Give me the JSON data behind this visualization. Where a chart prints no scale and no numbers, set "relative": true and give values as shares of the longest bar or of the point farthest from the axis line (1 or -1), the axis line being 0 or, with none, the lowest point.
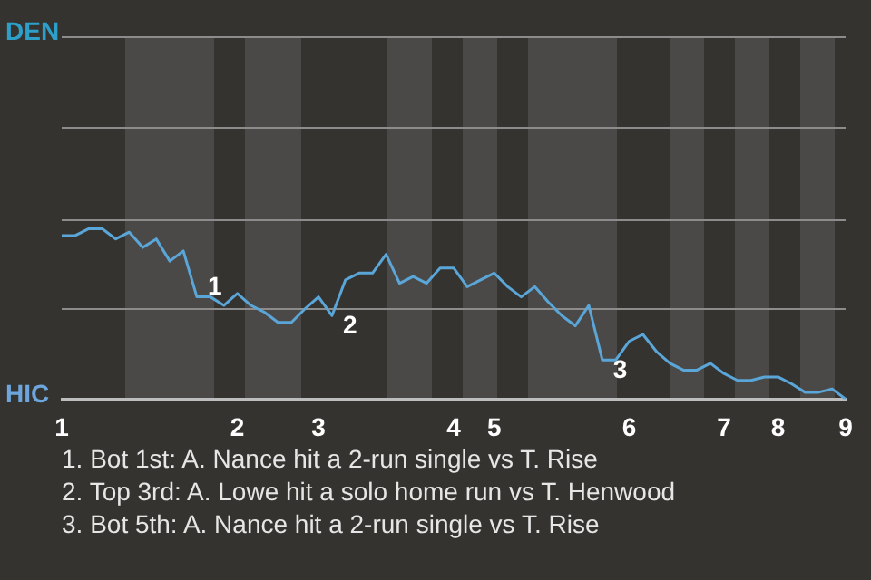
{
  "chart_data": {
    "type": "line",
    "color": "#5aa6d8",
    "relative": true,
    "categories": [
      "1",
      null,
      null,
      null,
      null,
      null,
      null,
      null,
      null,
      null,
      null,
      null,
      null,
      "2",
      null,
      null,
      null,
      null,
      null,
      "3",
      null,
      null,
      null,
      null,
      null,
      null,
      null,
      null,
      null,
      "4",
      null,
      null,
      "5",
      null,
      null,
      null,
      null,
      null,
      null,
      null,
      null,
      null,
      "6",
      null,
      null,
      null,
      null,
      null,
      null,
      "7",
      null,
      null,
      null,
      "8",
      null,
      null,
      null,
      null,
      "9"
    ],
    "values": [
      0.96,
      0.96,
      1,
      1,
      0.94,
      0.98,
      0.89,
      0.94,
      0.81,
      0.87,
      0.6,
      0.6,
      0.55,
      0.62,
      0.55,
      0.51,
      0.45,
      0.45,
      0.53,
      0.6,
      0.49,
      0.7,
      0.74,
      0.74,
      0.85,
      0.68,
      0.72,
      0.68,
      0.77,
      0.77,
      0.66,
      0.7,
      0.74,
      0.66,
      0.6,
      0.66,
      0.57,
      0.49,
      0.43,
      0.55,
      0.23,
      0.23,
      0.34,
      0.38,
      0.28,
      0.21,
      0.17,
      0.17,
      0.21,
      0.15,
      0.11,
      0.11,
      0.13,
      0.13,
      0.09,
      0.04,
      0.04,
      0.06,
      0
    ],
    "ref_lines": [
      {
        "axis": "y",
        "value": 0.53,
        "color": "#8c8c8c"
      },
      {
        "axis": "y",
        "value": 1.06,
        "color": "#8c8c8c"
      },
      {
        "axis": "y",
        "value": 1.6,
        "color": "#8c8c8c"
      }
    ],
    "marker": "none",
    "line_style": "solid",
    "annotations": [
      "DEN",
      "HIC",
      "1",
      "2",
      "3",
      "1. Bot 1st: A. Nance hit a 2-run single vs T. Rise",
      "2. Top 3rd: A. Lowe hit a solo home run vs T. Henwood",
      "3. Bot 5th: A. Nance hit a 2-run single vs T. Rise"
    ]
  }
}
